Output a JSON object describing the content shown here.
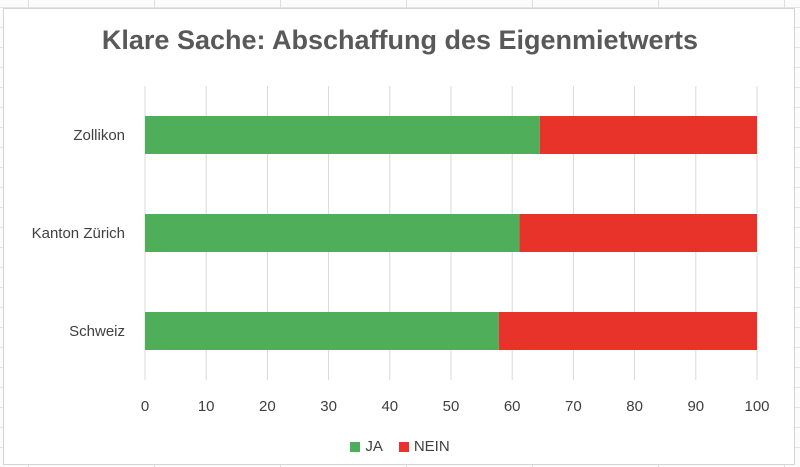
{
  "chart_data": {
    "type": "bar",
    "orientation": "horizontal",
    "stacked": true,
    "title": "Klare Sache: Abschaffung des Eigenmietwerts",
    "categories": [
      "Zollikon",
      "Kanton Zürich",
      "Schweiz"
    ],
    "series": [
      {
        "name": "JA",
        "color": "#4fae5a",
        "values": [
          64.5,
          61.2,
          57.8
        ]
      },
      {
        "name": "NEIN",
        "color": "#e8332a",
        "values": [
          35.5,
          38.8,
          42.2
        ]
      }
    ],
    "xlim": [
      0,
      100
    ],
    "xticks": [
      0,
      10,
      20,
      30,
      40,
      50,
      60,
      70,
      80,
      90,
      100
    ],
    "grid": true,
    "legend": "bottom"
  }
}
